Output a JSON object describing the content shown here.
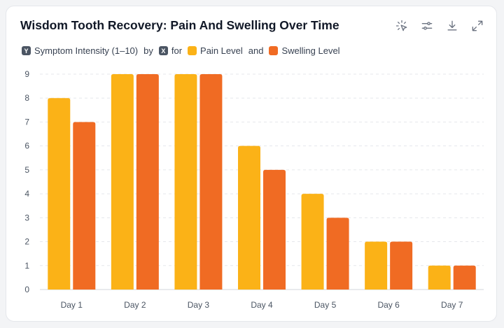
{
  "title": "Wisdom Tooth Recovery: Pain And Swelling Over Time",
  "toolbar": [
    {
      "icon": "magic-pointer-icon"
    },
    {
      "icon": "sliders-icon"
    },
    {
      "icon": "download-icon"
    },
    {
      "icon": "expand-icon"
    }
  ],
  "legend": {
    "y_chip": "Y",
    "y_label": "Symptom Intensity (1–10)",
    "by": "by",
    "x_chip": "X",
    "for": "for",
    "series_1": "Pain Level",
    "and": "and",
    "series_2": "Swelling Level"
  },
  "colors": {
    "pain": "#FBB217",
    "swelling": "#F06B23",
    "grid": "#e5e7eb"
  },
  "chart_data": {
    "type": "bar",
    "title": "Wisdom Tooth Recovery: Pain And Swelling Over Time",
    "xlabel": "",
    "ylabel": "Symptom Intensity (1–10)",
    "categories": [
      "Day 1",
      "Day 2",
      "Day 3",
      "Day 4",
      "Day 5",
      "Day 6",
      "Day 7"
    ],
    "series": [
      {
        "name": "Pain Level",
        "values": [
          8,
          9,
          9,
          6,
          4,
          2,
          1
        ]
      },
      {
        "name": "Swelling Level",
        "values": [
          7,
          9,
          9,
          5,
          3,
          2,
          1
        ]
      }
    ],
    "ylim": [
      0,
      9
    ],
    "yticks": [
      0,
      1,
      2,
      3,
      4,
      5,
      6,
      7,
      8,
      9
    ],
    "grid": true,
    "legend_position": "top-left"
  }
}
